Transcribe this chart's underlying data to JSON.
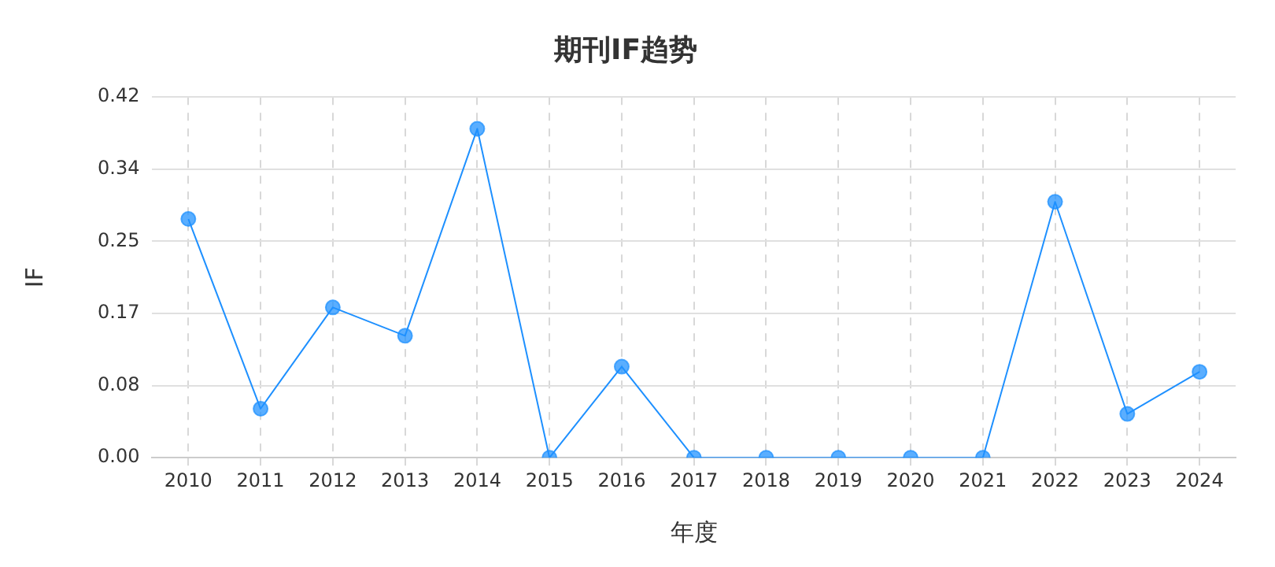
{
  "chart_data": {
    "type": "line",
    "title": "期刊IF趋势",
    "xlabel": "年度",
    "ylabel": "IF",
    "categories": [
      "2010",
      "2011",
      "2012",
      "2013",
      "2014",
      "2015",
      "2016",
      "2017",
      "2018",
      "2019",
      "2020",
      "2021",
      "2022",
      "2023",
      "2024"
    ],
    "series": [
      {
        "color": "#1e90ff",
        "values": [
          0.278,
          0.057,
          0.175,
          0.142,
          0.383,
          0,
          0.106,
          0,
          0,
          0,
          0,
          0,
          0.298,
          0.051,
          0.1
        ]
      }
    ],
    "ylim": [
      0,
      0.42
    ],
    "yticks": [
      {
        "value": 0,
        "label": "0.00"
      },
      {
        "value": 0.084,
        "label": "0.08"
      },
      {
        "value": 0.168,
        "label": "0.17"
      },
      {
        "value": 0.252,
        "label": "0.25"
      },
      {
        "value": 0.336,
        "label": "0.34"
      },
      {
        "value": 0.42,
        "label": "0.42"
      }
    ],
    "grid": true,
    "legend": false,
    "marker": "circle",
    "line_style": "solid"
  }
}
